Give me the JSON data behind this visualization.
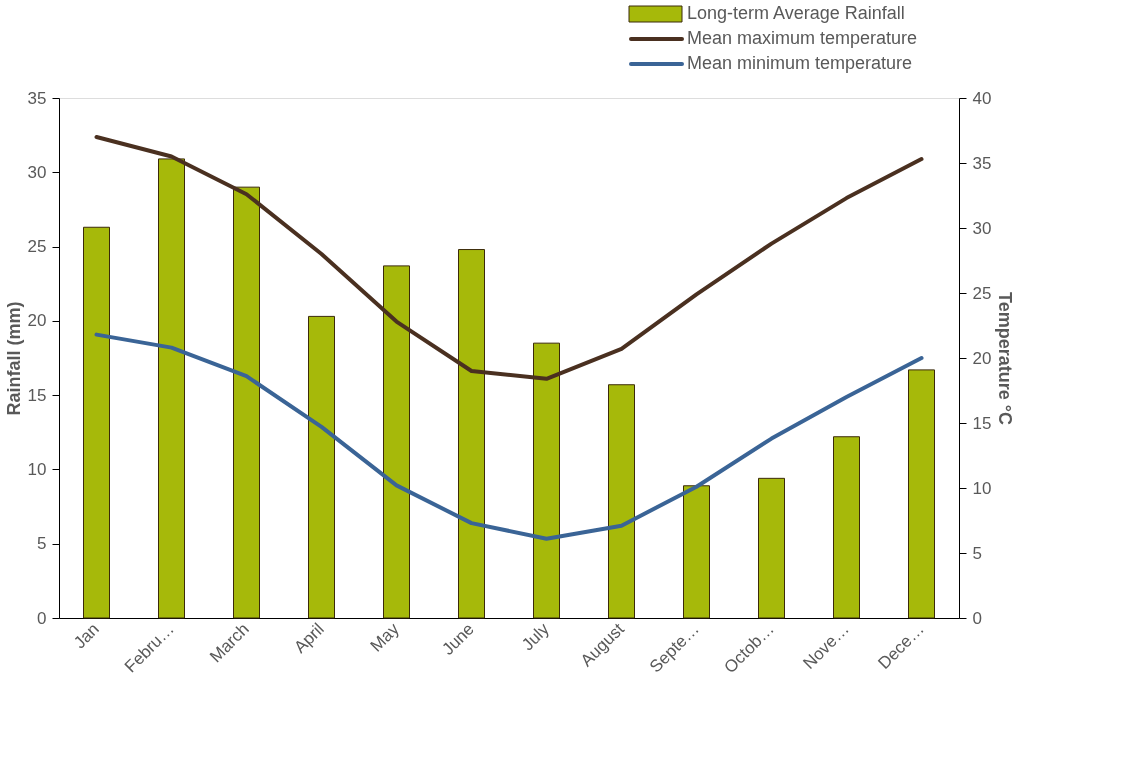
{
  "chart_data": {
    "type": "bar",
    "categories": [
      "Jan",
      "Febru…",
      "March",
      "April",
      "May",
      "June",
      "July",
      "August",
      "Septe…",
      "Octob…",
      "Nove…",
      "Dece…"
    ],
    "ylabel": "Rainfall (mm)",
    "y2label": "Temperature °C",
    "ylim": [
      0,
      35
    ],
    "yticks": [
      0,
      5,
      10,
      15,
      20,
      25,
      30,
      35
    ],
    "y2lim": [
      0,
      40
    ],
    "y2ticks": [
      0,
      5,
      10,
      15,
      20,
      25,
      30,
      35,
      40
    ],
    "legend": "top right",
    "grid": false,
    "line_style": "solid",
    "marker": "none",
    "series": [
      {
        "name": "Long-term Average Rainfall",
        "color": "#a6b90a",
        "values": [
          26.3,
          30.9,
          29.0,
          20.3,
          23.7,
          24.8,
          18.5,
          15.7,
          8.9,
          9.4,
          12.2,
          16.7
        ]
      },
      {
        "name": "Mean maximum temperature",
        "type": "line",
        "axis": "y2",
        "color": "#4a3020",
        "values": [
          37.0,
          35.5,
          32.6,
          28.0,
          22.8,
          19.0,
          18.4,
          20.7,
          24.9,
          28.8,
          32.3,
          35.3
        ]
      },
      {
        "name": "Mean minimum temperature",
        "type": "line",
        "axis": "y2",
        "color": "#3a6496",
        "values": [
          21.8,
          20.8,
          18.6,
          14.7,
          10.2,
          7.3,
          6.1,
          7.1,
          10.1,
          13.8,
          17.0,
          20.0
        ]
      }
    ]
  }
}
